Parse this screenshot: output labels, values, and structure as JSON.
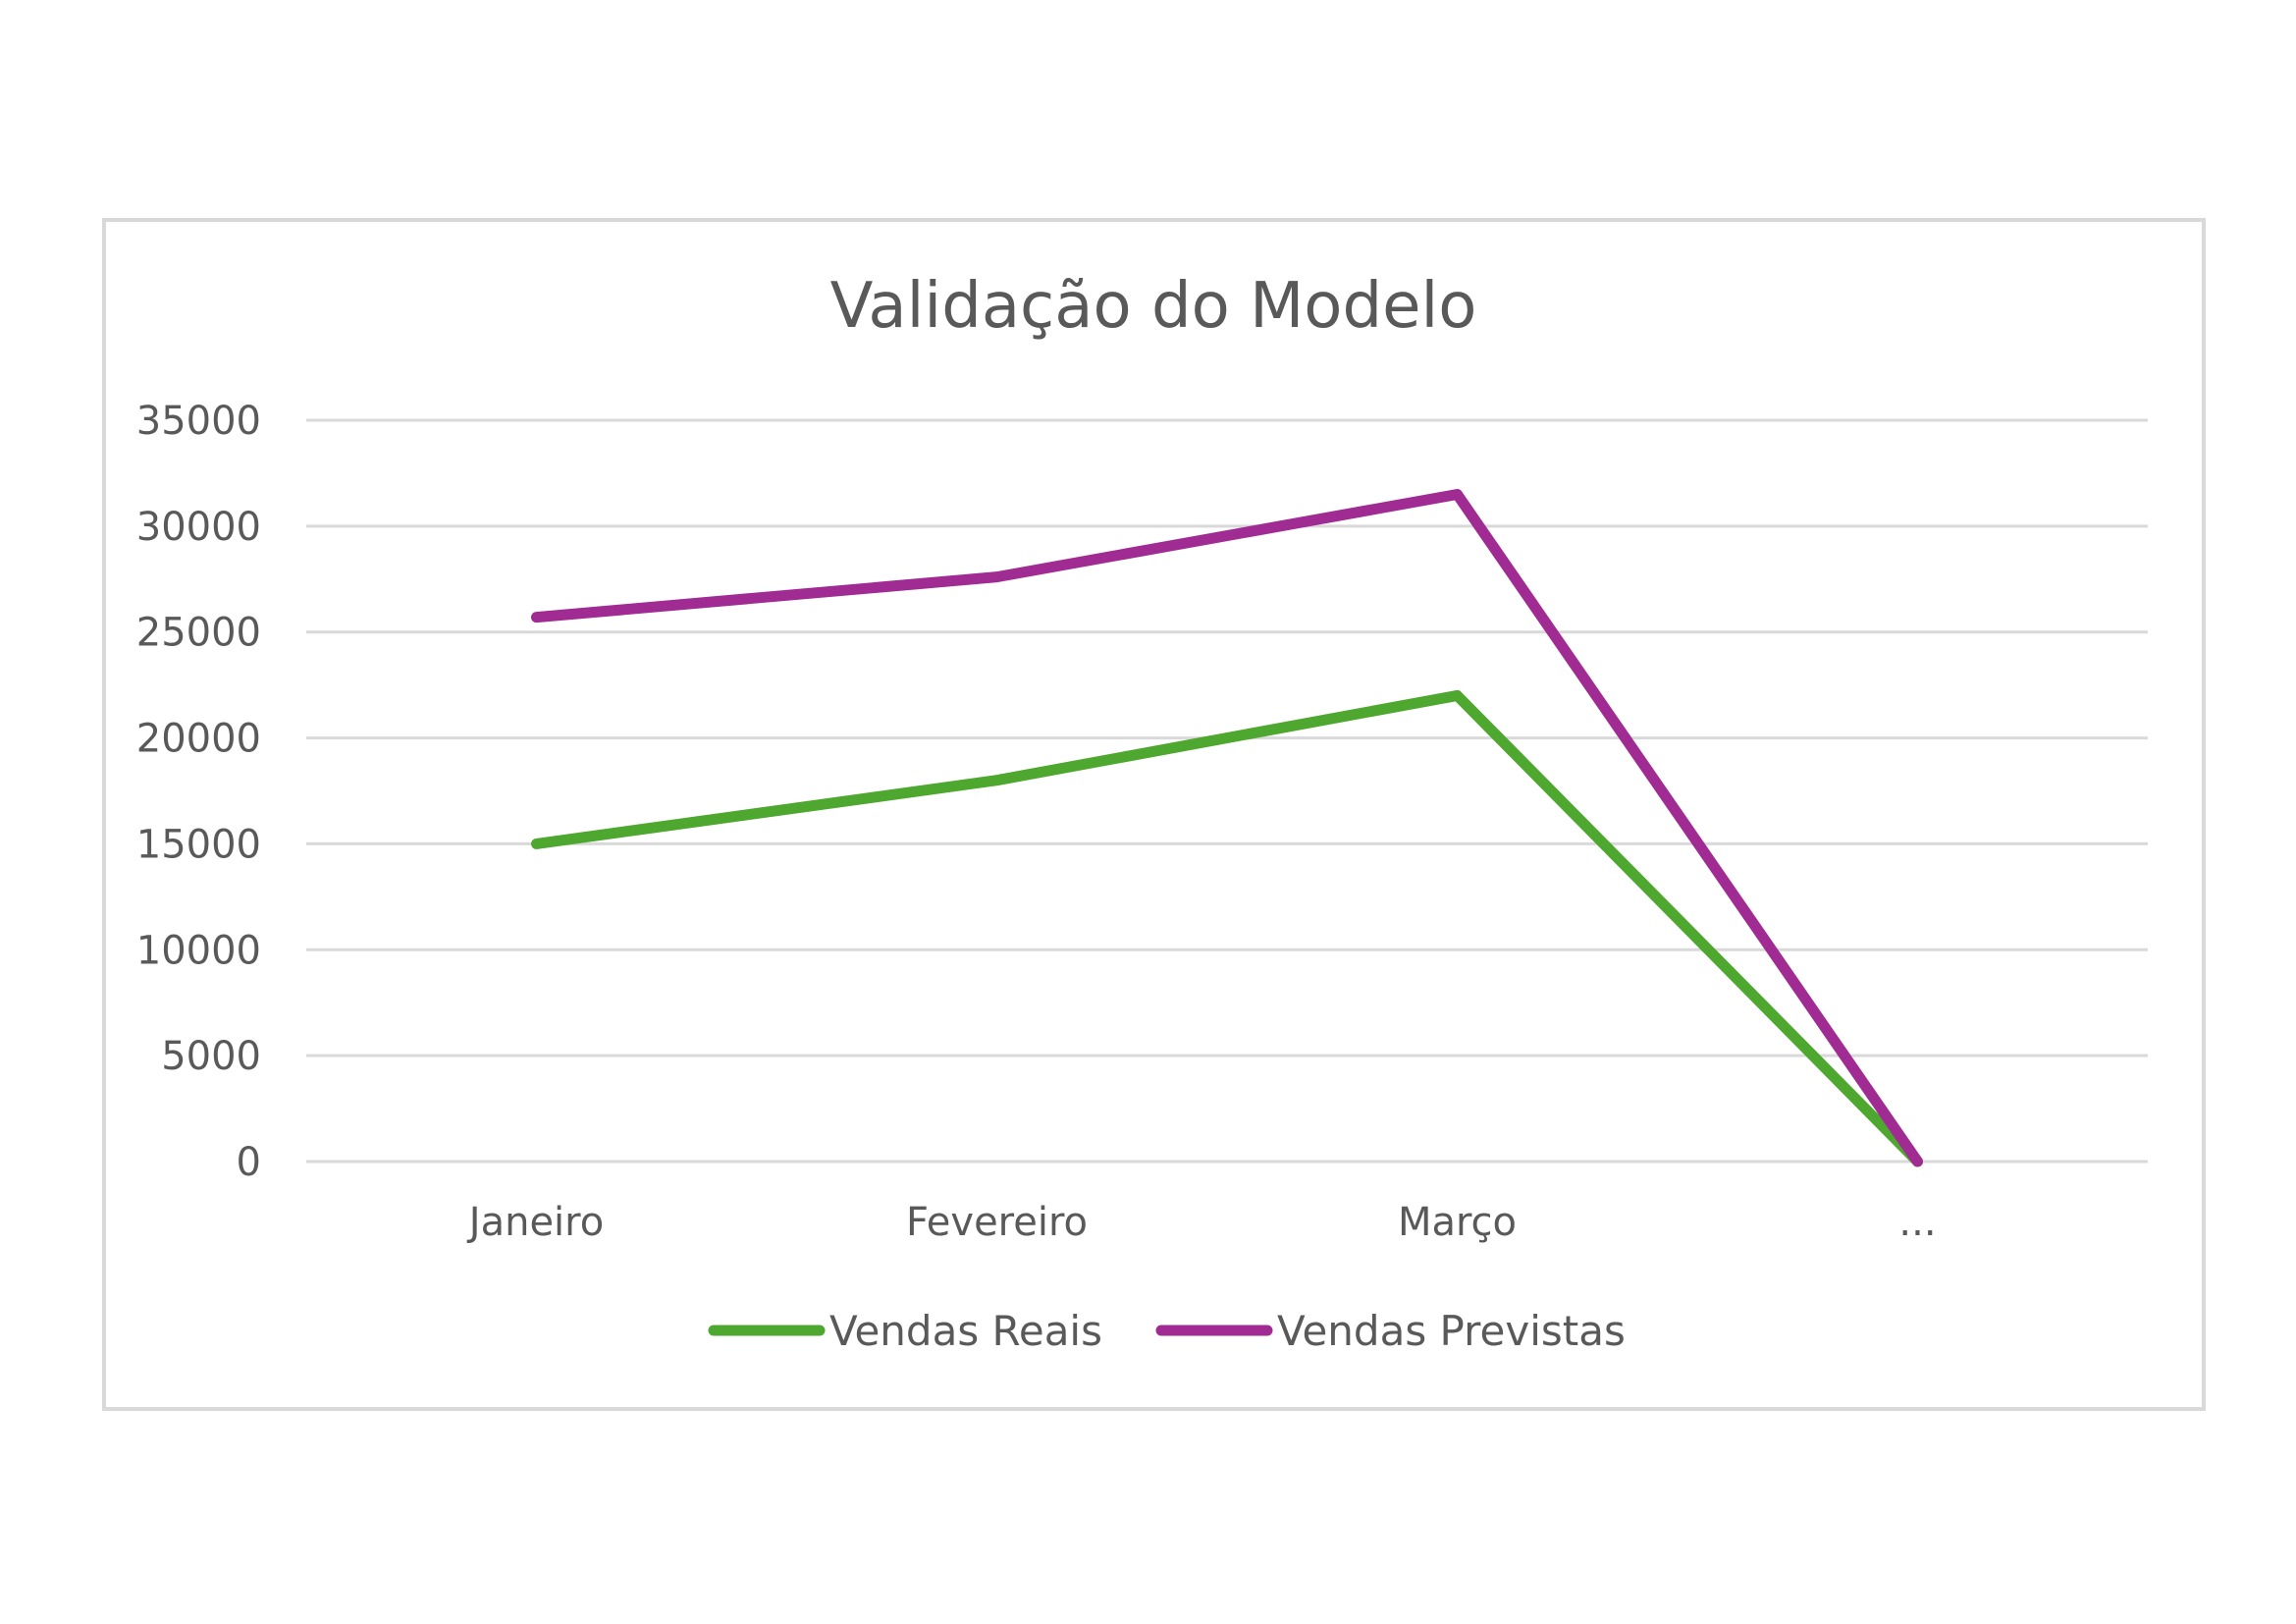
{
  "chart_data": {
    "type": "line",
    "title": "Validação do Modelo",
    "xlabel": "",
    "ylabel": "",
    "categories": [
      "Janeiro",
      "Fevereiro",
      "Março",
      "..."
    ],
    "ylim": [
      0,
      35000
    ],
    "yticks": [
      0,
      5000,
      10000,
      15000,
      20000,
      25000,
      30000,
      35000
    ],
    "grid": true,
    "legend_position": "bottom",
    "series": [
      {
        "name": "Vendas Reais",
        "color": "#4ea72e",
        "values": [
          15000,
          18000,
          22000,
          0
        ]
      },
      {
        "name": "Vendas Previstas",
        "color": "#a02b93",
        "values": [
          25700,
          27600,
          31500,
          0
        ]
      }
    ]
  }
}
